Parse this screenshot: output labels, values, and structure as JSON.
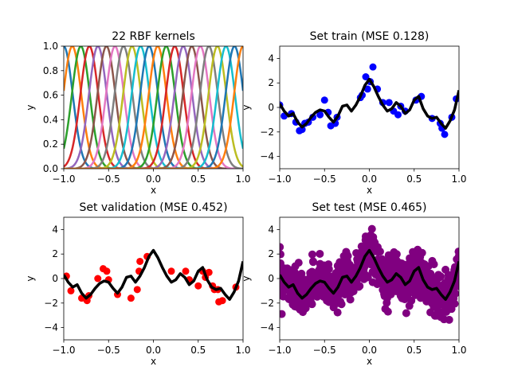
{
  "chart_data": [
    {
      "type": "line",
      "title": "22 RBF kernels",
      "xlabel": "x",
      "ylabel": "y",
      "xlim": [
        -1,
        1
      ],
      "ylim": [
        0,
        1
      ],
      "xticks": [
        "−1.0",
        "−0.5",
        "0.0",
        "0.5",
        "1.0"
      ],
      "yticks": [
        "0.0",
        "0.2",
        "0.4",
        "0.6",
        "0.8",
        "1.0"
      ],
      "grid": false,
      "kernels": {
        "count": 22,
        "centers_range": [
          -1,
          1
        ],
        "shape": "gaussian",
        "peak_value": 1,
        "half_width_approx": 0.1
      }
    },
    {
      "type": "scatter",
      "title": "Set train (MSE 0.128)",
      "xlabel": "x",
      "ylabel": "y",
      "xlim": [
        -1,
        1
      ],
      "ylim": [
        -5,
        5
      ],
      "xticks": [
        "−1.0",
        "−0.5",
        "0.0",
        "0.5",
        "1.0"
      ],
      "yticks": [
        "−4",
        "−2",
        "0",
        "2",
        "4"
      ],
      "grid": false,
      "points_color": "#0000ff",
      "points": [
        [
          -1.0,
          0.2
        ],
        [
          -0.95,
          -0.7
        ],
        [
          -0.87,
          -0.5
        ],
        [
          -0.82,
          -1.2
        ],
        [
          -0.78,
          -1.9
        ],
        [
          -0.75,
          -1.8
        ],
        [
          -0.72,
          -1.3
        ],
        [
          -0.68,
          -1.2
        ],
        [
          -0.63,
          -0.8
        ],
        [
          -0.55,
          -0.6
        ],
        [
          -0.5,
          0.6
        ],
        [
          -0.46,
          -0.4
        ],
        [
          -0.43,
          -1.5
        ],
        [
          -0.38,
          -1.3
        ],
        [
          -0.36,
          -0.8
        ],
        [
          -0.1,
          0.8
        ],
        [
          -0.08,
          1.0
        ],
        [
          -0.04,
          2.5
        ],
        [
          -0.02,
          1.5
        ],
        [
          0.01,
          2.1
        ],
        [
          0.04,
          3.3
        ],
        [
          0.09,
          1.5
        ],
        [
          0.15,
          0.4
        ],
        [
          0.22,
          0.4
        ],
        [
          0.27,
          -0.3
        ],
        [
          0.32,
          -0.6
        ],
        [
          0.35,
          0.1
        ],
        [
          0.4,
          -0.3
        ],
        [
          0.52,
          0.6
        ],
        [
          0.58,
          0.9
        ],
        [
          0.7,
          -0.9
        ],
        [
          0.79,
          -1.3
        ],
        [
          0.81,
          -1.7
        ],
        [
          0.84,
          -2.2
        ],
        [
          0.92,
          -0.8
        ],
        [
          0.97,
          0.7
        ]
      ],
      "series": [
        {
          "color": "#000000",
          "x": [
            -1.0,
            -0.95,
            -0.9,
            -0.85,
            -0.8,
            -0.75,
            -0.7,
            -0.65,
            -0.6,
            -0.55,
            -0.5,
            -0.45,
            -0.4,
            -0.35,
            -0.3,
            -0.25,
            -0.2,
            -0.15,
            -0.1,
            -0.05,
            0.0,
            0.05,
            0.1,
            0.15,
            0.2,
            0.25,
            0.3,
            0.35,
            0.4,
            0.45,
            0.5,
            0.55,
            0.6,
            0.65,
            0.7,
            0.75,
            0.8,
            0.85,
            0.9,
            0.95,
            1.0
          ],
          "y": [
            0.3,
            -0.3,
            -0.7,
            -0.5,
            -1.2,
            -1.6,
            -1.3,
            -0.8,
            -0.4,
            -0.2,
            -0.3,
            -0.8,
            -1.2,
            -0.7,
            0.1,
            0.2,
            -0.3,
            0.2,
            0.9,
            1.8,
            2.3,
            1.7,
            0.9,
            0.2,
            -0.3,
            -0.1,
            0.4,
            0.1,
            -0.5,
            -0.2,
            0.6,
            0.9,
            -0.1,
            -0.7,
            -0.9,
            -0.8,
            -1.3,
            -1.7,
            -1.1,
            -0.2,
            1.4
          ]
        }
      ]
    },
    {
      "type": "scatter",
      "title": "Set validation (MSE 0.452)",
      "xlabel": "x",
      "ylabel": "y",
      "xlim": [
        -1,
        1
      ],
      "ylim": [
        -5,
        5
      ],
      "xticks": [
        "−1.0",
        "−0.5",
        "0.0",
        "0.5",
        "1.0"
      ],
      "yticks": [
        "−4",
        "−2",
        "0",
        "2",
        "4"
      ],
      "grid": false,
      "points_color": "#ff0000",
      "points": [
        [
          -0.97,
          0.2
        ],
        [
          -0.92,
          -1.0
        ],
        [
          -0.8,
          -1.6
        ],
        [
          -0.74,
          -1.8
        ],
        [
          -0.72,
          -1.4
        ],
        [
          -0.62,
          0.0
        ],
        [
          -0.56,
          0.8
        ],
        [
          -0.52,
          0.6
        ],
        [
          -0.5,
          -0.1
        ],
        [
          -0.4,
          -1.3
        ],
        [
          -0.25,
          -1.6
        ],
        [
          -0.18,
          -0.9
        ],
        [
          -0.16,
          0.6
        ],
        [
          -0.15,
          1.4
        ],
        [
          -0.07,
          1.8
        ],
        [
          0.2,
          0.6
        ],
        [
          0.36,
          0.6
        ],
        [
          0.4,
          -0.1
        ],
        [
          0.5,
          -0.6
        ],
        [
          0.55,
          0.6
        ],
        [
          0.58,
          0.1
        ],
        [
          0.62,
          0.5
        ],
        [
          0.66,
          -0.6
        ],
        [
          0.68,
          -0.9
        ],
        [
          0.72,
          -0.9
        ],
        [
          0.73,
          -1.9
        ],
        [
          0.77,
          -1.8
        ],
        [
          0.92,
          -0.7
        ]
      ],
      "series": [
        {
          "color": "#000000",
          "x": [
            -1.0,
            -0.95,
            -0.9,
            -0.85,
            -0.8,
            -0.75,
            -0.7,
            -0.65,
            -0.6,
            -0.55,
            -0.5,
            -0.45,
            -0.4,
            -0.35,
            -0.3,
            -0.25,
            -0.2,
            -0.15,
            -0.1,
            -0.05,
            0.0,
            0.05,
            0.1,
            0.15,
            0.2,
            0.25,
            0.3,
            0.35,
            0.4,
            0.45,
            0.5,
            0.55,
            0.6,
            0.65,
            0.7,
            0.75,
            0.8,
            0.85,
            0.9,
            0.95,
            1.0
          ],
          "y": [
            0.3,
            -0.3,
            -0.7,
            -0.5,
            -1.2,
            -1.6,
            -1.3,
            -0.8,
            -0.4,
            -0.2,
            -0.3,
            -0.8,
            -1.2,
            -0.7,
            0.1,
            0.2,
            -0.3,
            0.2,
            0.9,
            1.8,
            2.3,
            1.7,
            0.9,
            0.2,
            -0.3,
            -0.1,
            0.4,
            0.1,
            -0.5,
            -0.2,
            0.6,
            0.9,
            -0.1,
            -0.7,
            -0.9,
            -0.8,
            -1.3,
            -1.7,
            -1.1,
            -0.2,
            1.4
          ]
        }
      ]
    },
    {
      "type": "scatter",
      "title": "Set test (MSE 0.465)",
      "xlabel": "x",
      "ylabel": "y",
      "xlim": [
        -1,
        1
      ],
      "ylim": [
        -5,
        5
      ],
      "xticks": [
        "−1.0",
        "−0.5",
        "0.0",
        "0.5",
        "1.0"
      ],
      "yticks": [
        "−4",
        "−2",
        "0",
        "2",
        "4"
      ],
      "grid": false,
      "points_color": "#800080",
      "dense_cloud": {
        "description": "dense band of test points around the fitted curve",
        "count_approx": 1000,
        "spread_approx": 1.2
      },
      "series": [
        {
          "color": "#000000",
          "x": [
            -1.0,
            -0.95,
            -0.9,
            -0.85,
            -0.8,
            -0.75,
            -0.7,
            -0.65,
            -0.6,
            -0.55,
            -0.5,
            -0.45,
            -0.4,
            -0.35,
            -0.3,
            -0.25,
            -0.2,
            -0.15,
            -0.1,
            -0.05,
            0.0,
            0.05,
            0.1,
            0.15,
            0.2,
            0.25,
            0.3,
            0.35,
            0.4,
            0.45,
            0.5,
            0.55,
            0.6,
            0.65,
            0.7,
            0.75,
            0.8,
            0.85,
            0.9,
            0.95,
            1.0
          ],
          "y": [
            0.3,
            -0.3,
            -0.7,
            -0.5,
            -1.2,
            -1.6,
            -1.3,
            -0.8,
            -0.4,
            -0.2,
            -0.3,
            -0.8,
            -1.2,
            -0.7,
            0.1,
            0.2,
            -0.3,
            0.2,
            0.9,
            1.8,
            2.3,
            1.7,
            0.9,
            0.2,
            -0.3,
            -0.1,
            0.4,
            0.1,
            -0.5,
            -0.2,
            0.6,
            0.9,
            -0.1,
            -0.7,
            -0.9,
            -0.8,
            -1.3,
            -1.7,
            -1.1,
            -0.2,
            1.4
          ]
        }
      ]
    }
  ],
  "colors": {
    "kernel_cycle": [
      "#1f77b4",
      "#ff7f0e",
      "#2ca02c",
      "#d62728",
      "#9467bd",
      "#8c564b",
      "#e377c2",
      "#7f7f7f",
      "#bcbd22",
      "#17becf"
    ]
  }
}
